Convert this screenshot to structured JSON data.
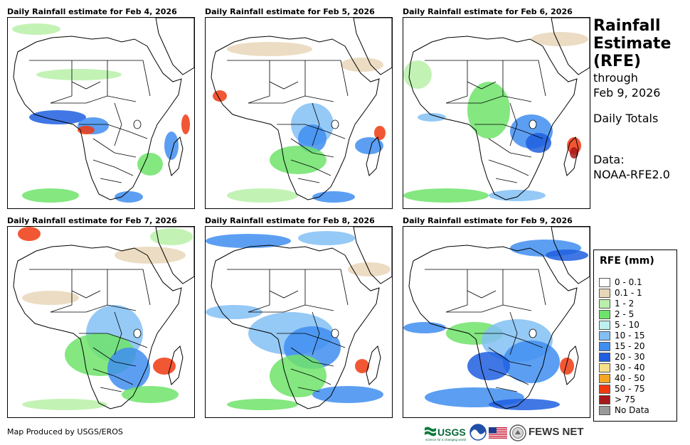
{
  "panels": [
    {
      "title": "Daily Rainfall estimate for Feb 4, 2026"
    },
    {
      "title": "Daily Rainfall estimate for Feb 5, 2026"
    },
    {
      "title": "Daily Rainfall estimate for Feb 6, 2026"
    },
    {
      "title": "Daily Rainfall estimate for Feb 7, 2026"
    },
    {
      "title": "Daily Rainfall estimate for Feb 8, 2026"
    },
    {
      "title": "Daily Rainfall estimate for Feb 9, 2026"
    }
  ],
  "side": {
    "title_line1": "Rainfall",
    "title_line2": "Estimate",
    "title_line3": "(RFE)",
    "through": "through",
    "date": "Feb 9, 2026",
    "totals": "Daily Totals",
    "data_label": "Data:",
    "data_source": "NOAA-RFE2.0"
  },
  "legend": {
    "title": "RFE (mm)",
    "items": [
      {
        "label": "0 - 0.1",
        "color": "#ffffff"
      },
      {
        "label": "0.1 - 1",
        "color": "#e8d6b8"
      },
      {
        "label": "1 - 2",
        "color": "#b8f0a8"
      },
      {
        "label": "2 - 5",
        "color": "#6ee36a"
      },
      {
        "label": "5 - 10",
        "color": "#bff0f0"
      },
      {
        "label": "10 - 15",
        "color": "#82bff5"
      },
      {
        "label": "15 - 20",
        "color": "#3f8ef0"
      },
      {
        "label": "20 - 30",
        "color": "#1f5fe0"
      },
      {
        "label": "30 - 40",
        "color": "#f7e08a"
      },
      {
        "label": "40 - 50",
        "color": "#f5a623"
      },
      {
        "label": "50 - 75",
        "color": "#f03a10"
      },
      {
        "label": "> 75",
        "color": "#a81818"
      },
      {
        "label": "No Data",
        "color": "#999999"
      }
    ]
  },
  "footer": {
    "credit": "Map Produced by USGS/EROS",
    "usgs_text": "USGS",
    "usgs_tagline": "science for a changing world",
    "noaa_text": "NOAA",
    "fewsnet": "FEWS NET"
  }
}
